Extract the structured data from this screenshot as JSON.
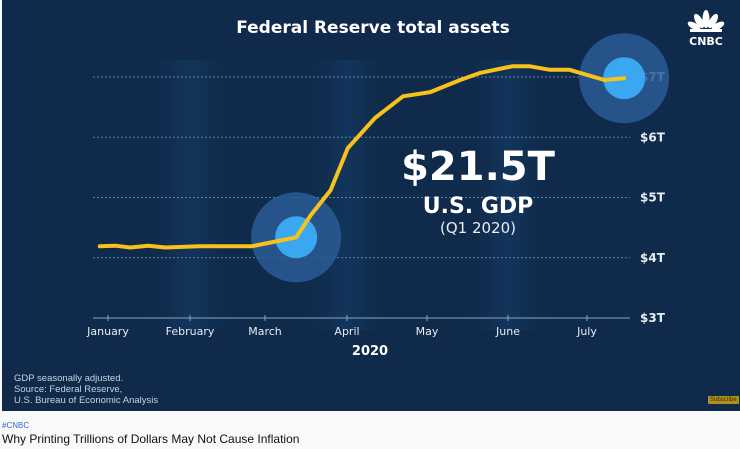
{
  "video": {
    "logo_text": "CNBC",
    "notes": [
      "GDP seasonally adjusted.",
      "Source: Federal Reserve,",
      "U.S. Bureau of Economic Analysis"
    ],
    "subscribe_label": "Subscribe",
    "highlight": {
      "value": "$21.5T",
      "label": "U.S. GDP",
      "period": "(Q1 2020)"
    }
  },
  "page": {
    "hashtag": "#CNBC",
    "title": "Why Printing Trillions of Dollars May Not Cause Inflation"
  },
  "colors": {
    "background": "#0f2a4a",
    "line": "#f7c21b",
    "circle_outer": "#2a5c95",
    "circle_inner": "#3aa8f0"
  },
  "chart_data": {
    "type": "line",
    "title": "Federal Reserve total assets",
    "xlabel": "2020",
    "ylabel": "",
    "x_tick_labels": [
      "January",
      "February",
      "March",
      "April",
      "May",
      "June",
      "July"
    ],
    "y_tick_labels": [
      "$3T",
      "$4T",
      "$5T",
      "$6T",
      "$7T"
    ],
    "y_ticks": [
      3,
      4,
      5,
      6,
      7
    ],
    "ylim": [
      3,
      7
    ],
    "xlim_months": [
      -0.1,
      6.55
    ],
    "grid": true,
    "series": [
      {
        "name": "Federal Reserve total assets (trillions USD)",
        "x_months": [
          -0.1,
          0.09,
          0.27,
          0.49,
          0.7,
          1.12,
          1.82,
          2.13,
          2.38,
          2.56,
          2.8,
          3.01,
          3.35,
          3.7,
          4.04,
          4.41,
          4.66,
          5.06,
          5.27,
          5.53,
          5.78,
          6.22,
          6.47
        ],
        "values": [
          4.19,
          4.2,
          4.17,
          4.2,
          4.17,
          4.19,
          4.19,
          4.27,
          4.34,
          4.71,
          5.12,
          5.82,
          6.32,
          6.68,
          6.75,
          6.95,
          7.07,
          7.18,
          7.18,
          7.12,
          7.12,
          6.95,
          6.98
        ]
      }
    ],
    "highlighted_points": [
      {
        "x_month": 2.38,
        "value": 4.34
      },
      {
        "x_month": 6.47,
        "value": 6.98
      }
    ]
  }
}
